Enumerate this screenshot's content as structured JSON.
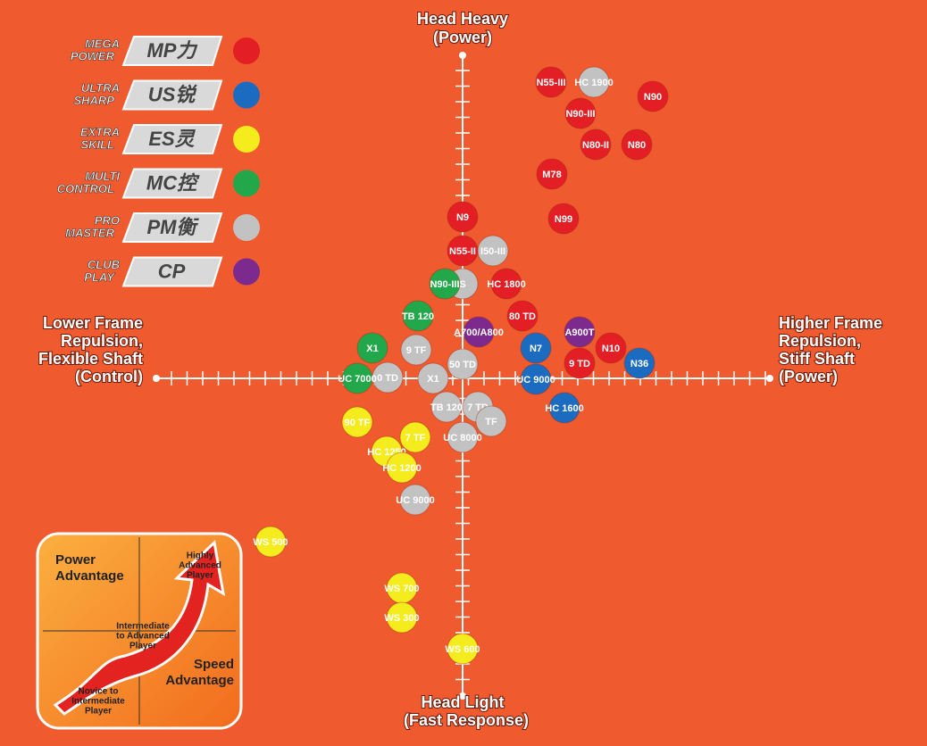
{
  "axes": {
    "top": [
      "Head Heavy",
      "(Power)"
    ],
    "bottom": [
      "Head Light",
      "(Fast Response)"
    ],
    "left": [
      "Lower Frame",
      "Repulsion,",
      "Flexible Shaft",
      "(Control)"
    ],
    "right": [
      "Higher Frame",
      "Repulsion,",
      "Stiff Shaft",
      "(Power)"
    ]
  },
  "groups": [
    {
      "lines": [
        "MEGA",
        "POWER"
      ],
      "badge": "MP力",
      "color": "#e31e24",
      "products": [
        "N55-III",
        "N90",
        "N90-III",
        "N80-II",
        "N80",
        "M78",
        "N99",
        "N9",
        "N55-II",
        "HC 1800",
        "80 TD",
        "N10",
        "9 TD"
      ]
    },
    {
      "lines": [
        "ULTRA",
        "SHARP"
      ],
      "badge": "US锐",
      "color": "#1b6cc0",
      "products": [
        "N7",
        "N36",
        "UC 9000",
        "HC 1600"
      ]
    },
    {
      "lines": [
        "EXTRA",
        "SKILL"
      ],
      "badge": "ES灵",
      "color": "#f4ec1c",
      "products": [
        "90 TF",
        "7 TF",
        "HC 1250",
        "HC 1200",
        "WS 500",
        "WS 700",
        "WS 300",
        "WS 600"
      ]
    },
    {
      "lines": [
        "MULTI",
        "CONTROL"
      ],
      "badge": "MC控",
      "color": "#22a84a",
      "products": [
        "TB 120",
        "X1",
        "N90-III",
        "UC 7000"
      ]
    },
    {
      "lines": [
        "PRO",
        "MASTER"
      ],
      "badge": "PM衡",
      "color": "#c2c2c2",
      "products": [
        "HC 1900",
        "I50-III",
        "S",
        "50 TD",
        "9 TF",
        "0 TD",
        "X1",
        "TB 120",
        "7 TD",
        "TF",
        "UC 8000",
        "UC 9000"
      ]
    },
    {
      "lines": [
        "CLUB",
        "PLAY"
      ],
      "badge": "CP",
      "color": "#7c2a8e",
      "products": [
        "A700/A800",
        "A900T"
      ]
    }
  ],
  "inset": {
    "power": [
      "Power",
      "Advantage"
    ],
    "speed": [
      "Speed",
      "Advantage"
    ],
    "highly": [
      "Highly",
      "Advanced",
      "Player"
    ],
    "intermediate": [
      "Intermediate",
      "to Advanced",
      "Player"
    ],
    "novice": [
      "Novice to",
      "Intermediate",
      "Player"
    ]
  }
}
